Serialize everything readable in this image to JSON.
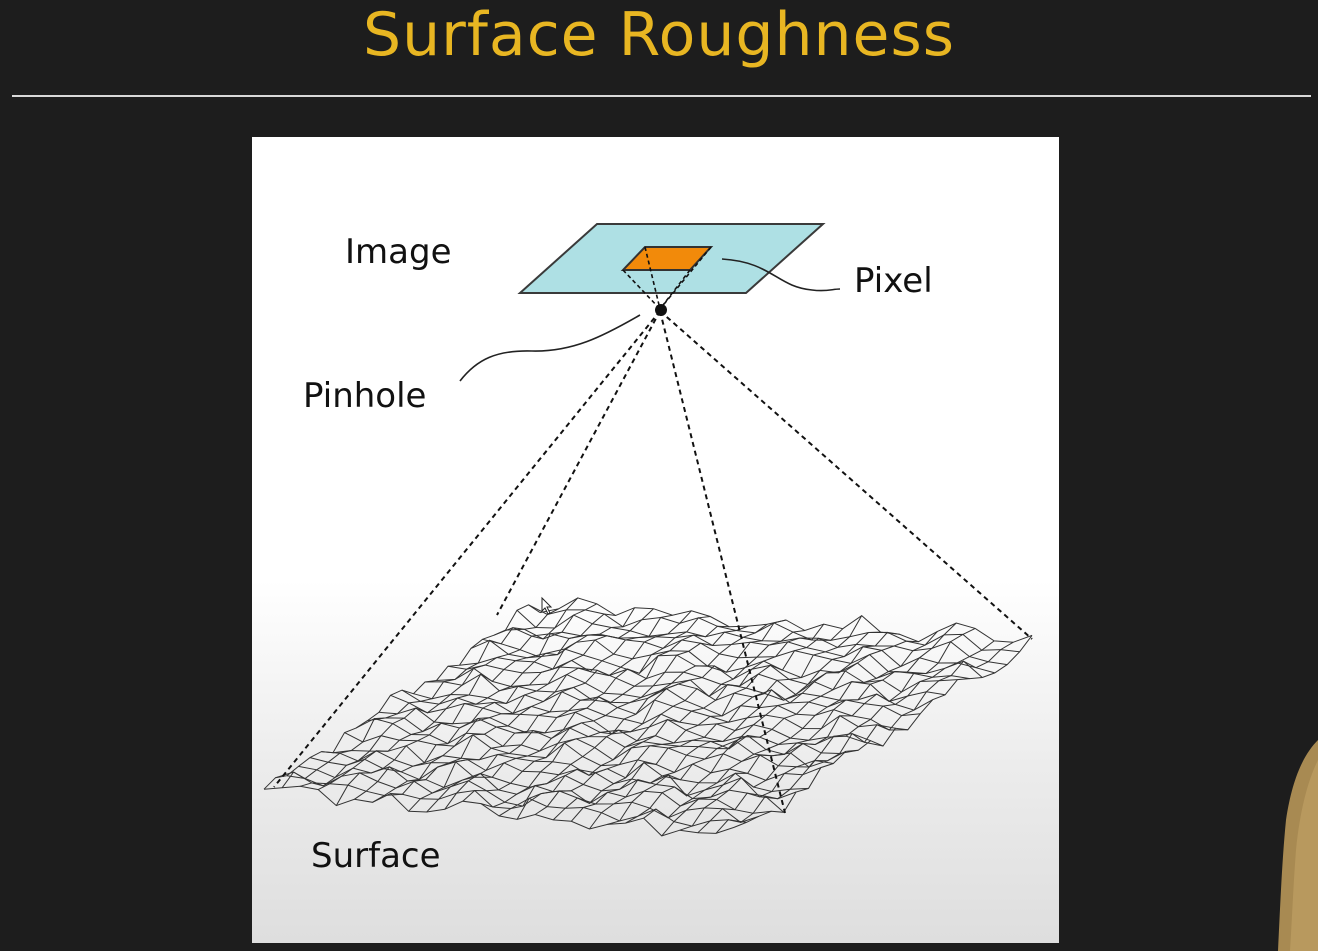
{
  "slide": {
    "title": "Surface Roughness"
  },
  "diagram": {
    "labels": {
      "image": "Image",
      "pixel": "Pixel",
      "pinhole": "Pinhole",
      "surface": "Surface"
    },
    "colors": {
      "title": "#e8b622",
      "image_plane": "#aee0e4",
      "pixel": "#f28a0a",
      "background": "#1d1d1d",
      "panel": "#ffffff"
    }
  }
}
